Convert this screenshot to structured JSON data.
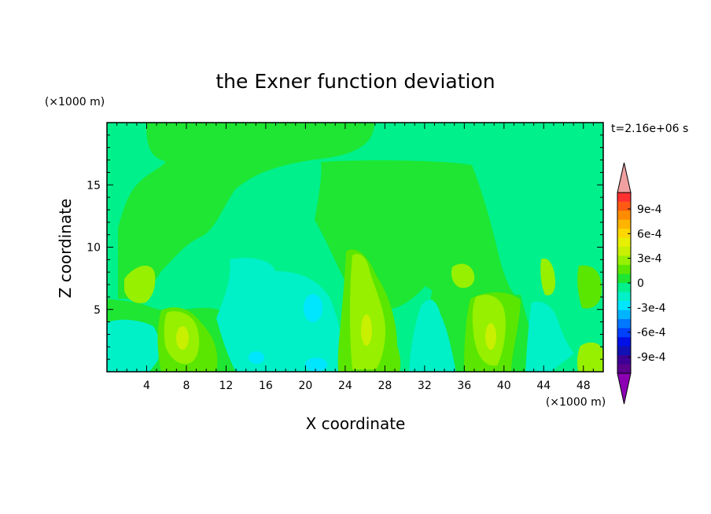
{
  "chart_data": {
    "type": "heatmap",
    "title": "the Exner function deviation",
    "xlabel": "X coordinate",
    "ylabel": "Z coordinate",
    "x_unit": "(×1000 m)",
    "y_unit": "(×1000 m)",
    "time_label": "t=2.16e+06 s",
    "xlim": [
      0,
      50
    ],
    "ylim": [
      0,
      20
    ],
    "x_ticks": [
      4,
      8,
      12,
      16,
      20,
      24,
      28,
      32,
      36,
      40,
      44,
      48
    ],
    "y_ticks": [
      5,
      10,
      15
    ],
    "colorbar": {
      "min": -0.0011,
      "max": 0.0011,
      "step": 0.0001,
      "tick_labels": [
        "9e-4",
        "6e-4",
        "3e-4",
        "0",
        "-3e-4",
        "-6e-4",
        "-9e-4"
      ],
      "tick_values": [
        0.0009,
        0.0006,
        0.0003,
        0,
        -0.0003,
        -0.0006,
        -0.0009
      ],
      "bands_top_to_bottom": [
        "#ff3030",
        "#ff5a14",
        "#ff8c00",
        "#ffb400",
        "#ffd700",
        "#e6f000",
        "#c8f000",
        "#96f000",
        "#5ae600",
        "#1ee632",
        "#00f08c",
        "#00f0c8",
        "#00e6ff",
        "#00b4ff",
        "#0078ff",
        "#0040ff",
        "#0010e6",
        "#1010b4",
        "#3c0096",
        "#5a008c"
      ],
      "over_color": "#f0a0a0",
      "under_color": "#8c00b4"
    },
    "regions": [
      {
        "level": "-1e-4",
        "color": "#00f08c",
        "description": "background"
      },
      {
        "level": "0",
        "color": "#1ee632",
        "description": "upper-left large region"
      },
      {
        "level": "0",
        "color": "#1ee632",
        "description": "central raised region x 21-33 km"
      },
      {
        "level": "-2e-4",
        "color": "#00f0c8",
        "description": "lower-middle cyan-green cells"
      },
      {
        "level": "-3e-4",
        "color": "#00e6ff",
        "description": "small cyan cells"
      },
      {
        "level": "1e-4",
        "color": "#5ae600",
        "description": "lower light-green cells"
      },
      {
        "level": "2e-4",
        "color": "#96f000",
        "description": "lower yellow-green cells"
      },
      {
        "level": "3e-4",
        "color": "#c8f000",
        "description": "small yellow cores"
      }
    ]
  }
}
